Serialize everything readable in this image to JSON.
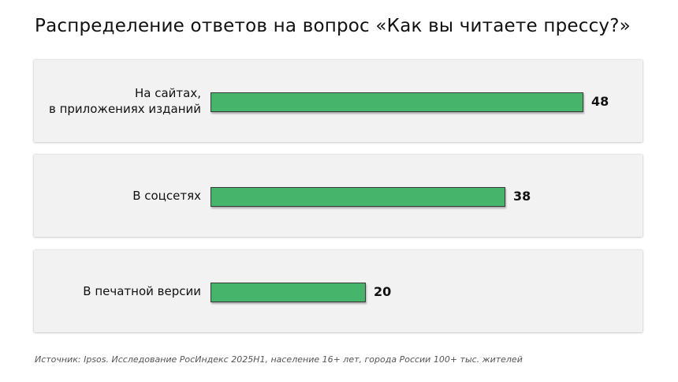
{
  "title": "Распределение ответов на вопрос «Как вы читаете прессу?»",
  "source": "Источник: Ipsos. Исследование РосИндекс 2025H1, население 16+ лет, города России 100+ тыс. жителей",
  "colors": {
    "bar": "#47b46b",
    "panel": "#f2f2f2"
  },
  "chart_data": {
    "type": "bar",
    "orientation": "horizontal",
    "title": "Распределение ответов на вопрос «Как вы читаете прессу?»",
    "categories": [
      [
        "На сайтах,",
        "в приложениях изданий"
      ],
      [
        "В соцсетях"
      ],
      [
        "В печатной версии"
      ]
    ],
    "values": [
      48,
      38,
      20
    ],
    "value_labels": [
      "48",
      "38",
      "20"
    ],
    "xlim": [
      0,
      100
    ],
    "grid": false,
    "legend": "none"
  }
}
